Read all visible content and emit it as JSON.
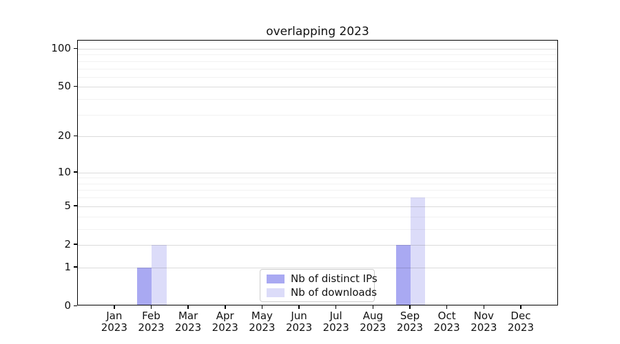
{
  "title": "overlapping 2023",
  "chart_data": {
    "type": "bar",
    "title": "overlapping 2023",
    "categories": [
      "Jan 2023",
      "Feb 2023",
      "Mar 2023",
      "Apr 2023",
      "May 2023",
      "Jun 2023",
      "Jul 2023",
      "Aug 2023",
      "Sep 2023",
      "Oct 2023",
      "Nov 2023",
      "Dec 2023"
    ],
    "x_tick_line1": [
      "Jan",
      "Feb",
      "Mar",
      "Apr",
      "May",
      "Jun",
      "Jul",
      "Aug",
      "Sep",
      "Oct",
      "Nov",
      "Dec"
    ],
    "x_tick_line2": "2023",
    "series": [
      {
        "name": "Nb of distinct IPs",
        "color": "#a9a9f2",
        "values": [
          0,
          1,
          0,
          0,
          0,
          0,
          0,
          0,
          2,
          0,
          0,
          0
        ]
      },
      {
        "name": "Nb of downloads",
        "color": "#dcdcf9",
        "values": [
          0,
          2,
          0,
          0,
          0,
          0,
          0,
          0,
          6,
          0,
          0,
          0
        ]
      }
    ],
    "y_scale": "log10(1+v)",
    "ylim": [
      0,
      117
    ],
    "y_major_ticks": [
      0,
      1,
      2,
      5,
      10,
      20,
      50,
      100
    ],
    "y_minor_gridlines": [
      3,
      4,
      6,
      7,
      8,
      9,
      30,
      40,
      60,
      70,
      80,
      90
    ],
    "grid": "on",
    "legend_position": "lower center",
    "colors": {
      "axis": "#000000",
      "grid_major": "#dedede",
      "grid_minor": "#f3f3f3"
    }
  }
}
